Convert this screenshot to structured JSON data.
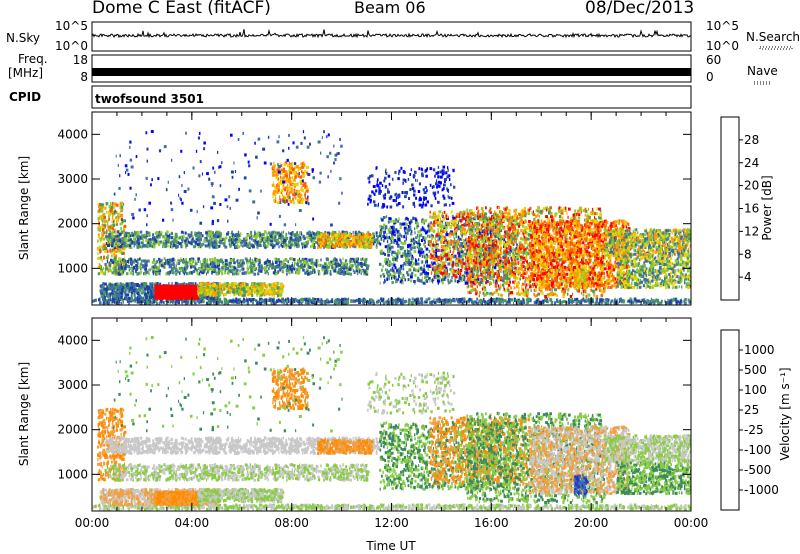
{
  "header": {
    "station": "Dome C East (fitACF)",
    "beam": "Beam 06",
    "date": "08/Dec/2013"
  },
  "side_labels": {
    "nsky": "N.Sky",
    "nsearch": "N.Search",
    "freq_line1": "Freq.",
    "freq_line2": "[MHz]",
    "nave": "Nave",
    "cpid": "CPID"
  },
  "cpid_value": "twofsound 3501",
  "strip_ticks": {
    "noise_left": [
      "10^5",
      "10^0"
    ],
    "noise_right": [
      "10^5",
      "10^0"
    ],
    "freq_left": [
      "18",
      "8"
    ],
    "freq_right": [
      "60",
      "0"
    ]
  },
  "colors": {
    "noise_sky": "#000000",
    "freq_band": "#000000",
    "power_scale": [
      "#0000ff",
      "#1f3fa8",
      "#3f6fa0",
      "#4a9a60",
      "#8fcc30",
      "#f0d000",
      "#ff9900",
      "#ff5a00",
      "#ff0000"
    ],
    "velocity_scale": [
      "#ff0000",
      "#ff4a00",
      "#ff8a00",
      "#f0a040",
      "#c8c8c8",
      "#88cc44",
      "#3a8a5a",
      "#3a70b0",
      "#2233cc"
    ]
  },
  "chart_data": [
    {
      "type": "heatmap",
      "panel": "power",
      "xlabel": "",
      "ylabel": "Slant Range [km]",
      "xlim": [
        0,
        24
      ],
      "ylim": [
        180,
        4500
      ],
      "x_ticks": [
        0,
        4,
        8,
        12,
        16,
        20,
        24
      ],
      "x_tick_labels": [
        "00:00",
        "04:00",
        "08:00",
        "12:00",
        "16:00",
        "20:00",
        "00:00"
      ],
      "y_ticks": [
        1000,
        2000,
        3000,
        4000
      ],
      "y_tick_labels": [
        "1000",
        "2000",
        "3000",
        "4000"
      ],
      "colorbar": {
        "label": "Power [dB]",
        "range": [
          0,
          32
        ],
        "tick_values": [
          4,
          8,
          12,
          16,
          20,
          24,
          28
        ],
        "tick_labels": [
          "4",
          "8",
          "12",
          "16",
          "20",
          "24",
          "28"
        ]
      }
    },
    {
      "type": "heatmap",
      "panel": "velocity",
      "xlabel": "Time UT",
      "ylabel": "Slant Range [km]",
      "xlim": [
        0,
        24
      ],
      "ylim": [
        180,
        4500
      ],
      "x_ticks": [
        0,
        4,
        8,
        12,
        16,
        20,
        24
      ],
      "x_tick_labels": [
        "00:00",
        "04:00",
        "08:00",
        "12:00",
        "16:00",
        "20:00",
        "00:00"
      ],
      "y_ticks": [
        1000,
        2000,
        3000,
        4000
      ],
      "y_tick_labels": [
        "1000",
        "2000",
        "3000",
        "4000"
      ],
      "colorbar": {
        "label": "Velocity [m s⁻¹]",
        "tick_labels": [
          "1000",
          "500",
          "100",
          "25",
          "-25",
          "-100",
          "-500",
          "-1000"
        ]
      }
    }
  ]
}
